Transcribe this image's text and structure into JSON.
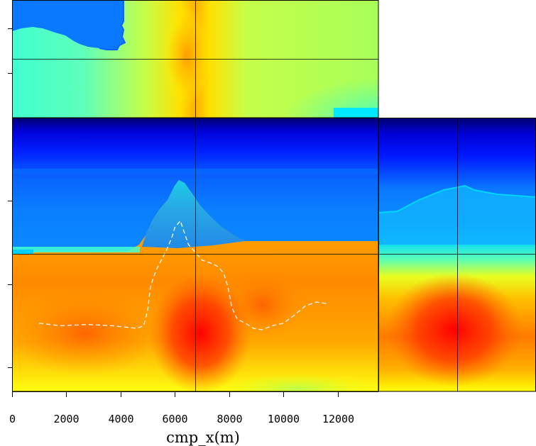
{
  "chart_data": {
    "type": "heatmap",
    "title": "",
    "xlabel": "cmp_x(m)",
    "ylabel": "",
    "xlim": [
      0,
      13500
    ],
    "x_ticks": [
      0,
      2000,
      4000,
      6000,
      8000,
      10000,
      12000
    ],
    "x_tick_labels": [
      "0",
      "2000",
      "4000",
      "6000",
      "8000",
      "10000",
      "12000"
    ],
    "y_tick_labels": [],
    "grid": true,
    "colormap": "jet",
    "panels": [
      {
        "name": "",
        "content": "depth slice"
      },
      {
        "name": "",
        "content": "inline section"
      },
      {
        "name": "",
        "content": "crossline section"
      }
    ],
    "overlay_curve": {
      "style": "white dashed",
      "x": [
        1000,
        1800,
        2800,
        3700,
        4600,
        4850,
        5000,
        5100,
        5300,
        5500,
        5700,
        5900,
        6000,
        6200,
        6500,
        6800,
        7000,
        7300,
        7600,
        7800,
        7950,
        8100,
        8300,
        8600,
        8900,
        9200,
        9600,
        10000,
        10400,
        10800,
        11200,
        11600
      ],
      "y": [
        0.52,
        0.5,
        0.51,
        0.5,
        0.48,
        0.5,
        0.62,
        0.8,
        0.92,
        1.0,
        1.08,
        1.18,
        1.25,
        1.3,
        1.12,
        1.05,
        1.0,
        0.98,
        0.95,
        0.9,
        0.8,
        0.64,
        0.55,
        0.52,
        0.48,
        0.47,
        0.5,
        0.52,
        0.58,
        0.65,
        0.68,
        0.67
      ]
    },
    "colors": {
      "frame": "#000000",
      "overlay": "#ffffff",
      "colormap_stops": [
        "#00006e",
        "#0000ff",
        "#0a78ff",
        "#00d0ff",
        "#40ffd0",
        "#b4ff50",
        "#ffff00",
        "#ffb400",
        "#ff5000",
        "#ff0000"
      ]
    }
  }
}
